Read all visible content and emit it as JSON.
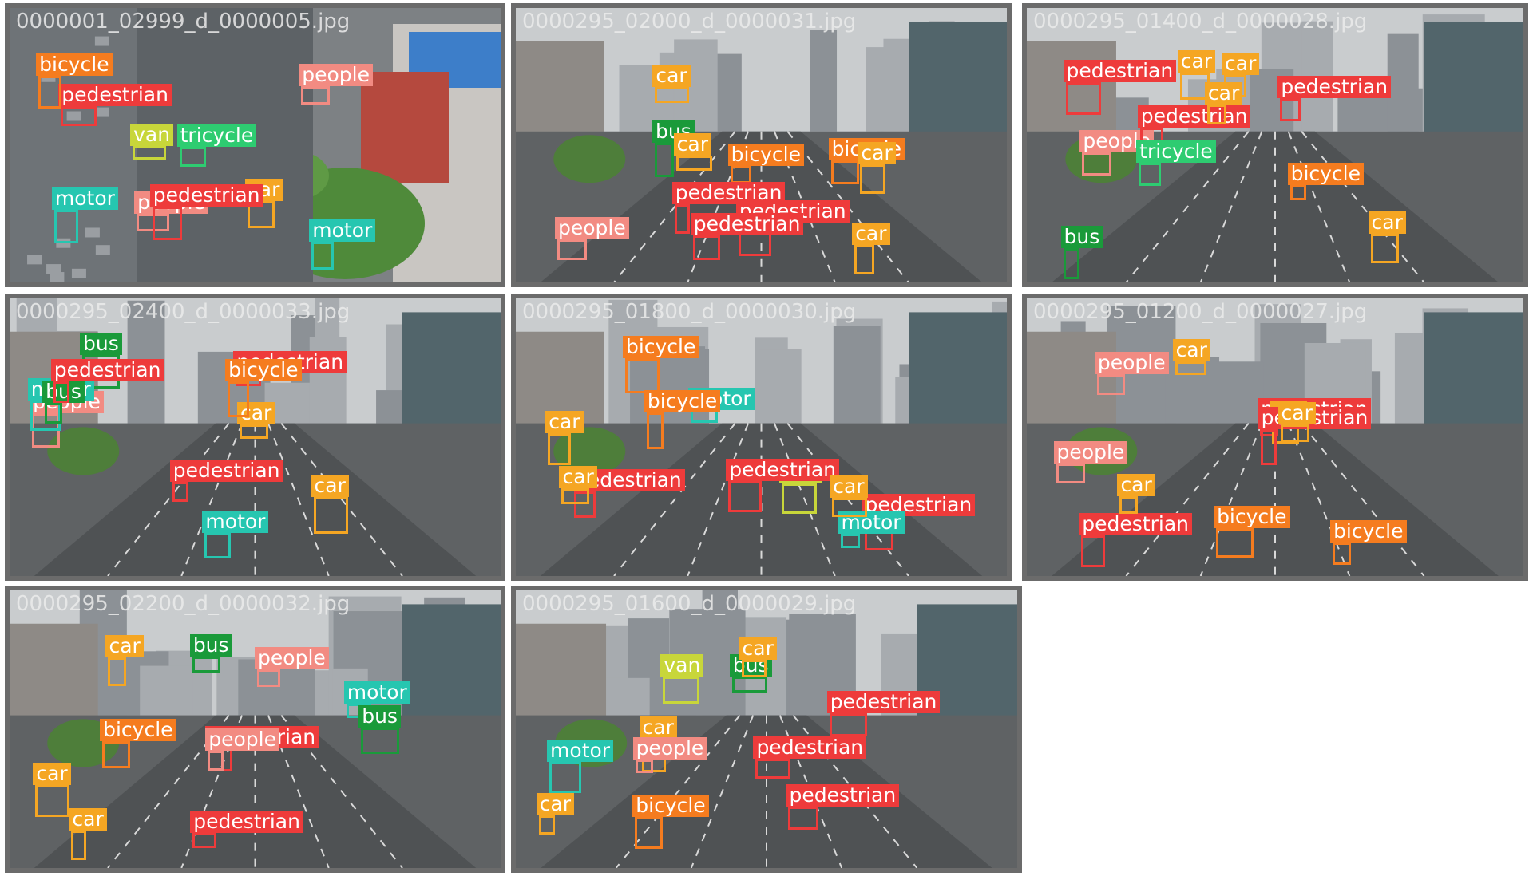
{
  "grid": {
    "tiles": [
      {
        "file": "0000001_02999_d_0000005.jpg",
        "labels": [
          "pedestrian",
          "people",
          "motor",
          "tricycle",
          "people",
          "van",
          "car",
          "bicycle",
          "motor",
          "pedestrian"
        ]
      },
      {
        "file": "0000295_02000_d_0000031.jpg",
        "labels": [
          "pedestrian",
          "bus",
          "car",
          "bicycle",
          "bicycle",
          "pedestrian",
          "car",
          "car",
          "people",
          "car",
          "pedestrian"
        ]
      },
      {
        "file": "0000295_01400_d_0000028.jpg",
        "labels": [
          "people",
          "car",
          "bus",
          "bicycle",
          "car",
          "car",
          "pedestrian",
          "pedestrian",
          "pedestrian",
          "car",
          "tricycle"
        ]
      },
      {
        "file": "0000295_02400_d_0000033.jpg",
        "labels": [
          "pedestrian",
          "pedestrian",
          "bus",
          "car",
          "people",
          "car",
          "bicycle",
          "motor",
          "bus",
          "motor",
          "pedestrian"
        ]
      },
      {
        "file": "0000295_01800_d_0000030.jpg",
        "labels": [
          "pedestrian",
          "motor",
          "bicycle",
          "pedestrian",
          "car",
          "van",
          "motor",
          "bicycle",
          "car",
          "pedestrian",
          "car"
        ]
      },
      {
        "file": "0000295_01200_d_0000027.jpg",
        "labels": [
          "pedestrian",
          "bicycle",
          "car",
          "pedestrian",
          "people",
          "bicycle",
          "car",
          "car",
          "people",
          "pedestrian",
          "car"
        ]
      },
      {
        "file": "0000295_02200_d_0000032.jpg",
        "labels": [
          "car",
          "pedestrian",
          "bus",
          "car",
          "bicycle",
          "motor",
          "people",
          "bus",
          "car",
          "people",
          "pedestrian"
        ]
      },
      {
        "file": "0000295_01600_d_0000029.jpg",
        "labels": [
          "pedestrian",
          "bus",
          "car",
          "van",
          "bicycle",
          "motor",
          "pedestrian",
          "car",
          "car",
          "pedestrian",
          "people"
        ]
      }
    ]
  },
  "colors": {
    "pedestrian": "#ee3b3b",
    "people": "#f28b82",
    "car": "#f5a623",
    "bus": "#1a9a3a",
    "bicycle": "#f57c1f",
    "motor": "#26c6b0",
    "tricycle": "#2ecc71",
    "van": "#c8d63a",
    "awning-tricycle": "#39c98a"
  }
}
